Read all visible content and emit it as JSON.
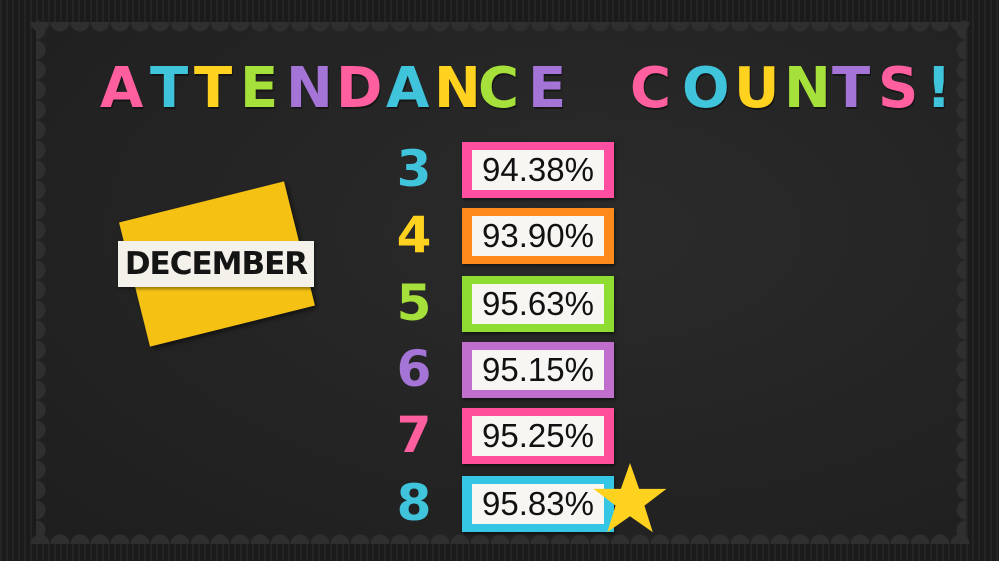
{
  "title": {
    "letters": [
      {
        "ch": "A",
        "color": "#ff5f9e"
      },
      {
        "ch": "T",
        "color": "#3fc4dc"
      },
      {
        "ch": "T",
        "color": "#ffd21f"
      },
      {
        "ch": "E",
        "color": "#a6e03a"
      },
      {
        "ch": "N",
        "color": "#a474d6"
      },
      {
        "ch": "D",
        "color": "#ff5f9e"
      },
      {
        "ch": "A",
        "color": "#3fc4dc"
      },
      {
        "ch": "N",
        "color": "#ffd21f"
      },
      {
        "ch": "C",
        "color": "#a6e03a"
      },
      {
        "ch": "E",
        "color": "#a474d6"
      },
      {
        "ch": "C",
        "color": "#ff5f9e"
      },
      {
        "ch": "O",
        "color": "#3fc4dc"
      },
      {
        "ch": "U",
        "color": "#ffd21f"
      },
      {
        "ch": "N",
        "color": "#a6e03a"
      },
      {
        "ch": "T",
        "color": "#a474d6"
      },
      {
        "ch": "S",
        "color": "#ff5f9e"
      },
      {
        "ch": "!",
        "color": "#3fc4dc"
      }
    ]
  },
  "month": {
    "label": "DECEMBER"
  },
  "grades": [
    {
      "grade": "3",
      "percent": "94.38%",
      "grade_color": "#3fc4dc",
      "frame_color": "#ff4fa0"
    },
    {
      "grade": "4",
      "percent": "93.90%",
      "grade_color": "#ffd21f",
      "frame_color": "#ff8a1c"
    },
    {
      "grade": "5",
      "percent": "95.63%",
      "grade_color": "#a6e03a",
      "frame_color": "#8fdc33"
    },
    {
      "grade": "6",
      "percent": "95.15%",
      "grade_color": "#a474d6",
      "frame_color": "#c06fce"
    },
    {
      "grade": "7",
      "percent": "95.25%",
      "grade_color": "#ff5f9e",
      "frame_color": "#ff4f9a"
    },
    {
      "grade": "8",
      "percent": "95.83%",
      "grade_color": "#3fc4dc",
      "frame_color": "#35c6e6"
    }
  ],
  "star": {
    "icon": "star-icon",
    "color": "#ffd21f"
  }
}
